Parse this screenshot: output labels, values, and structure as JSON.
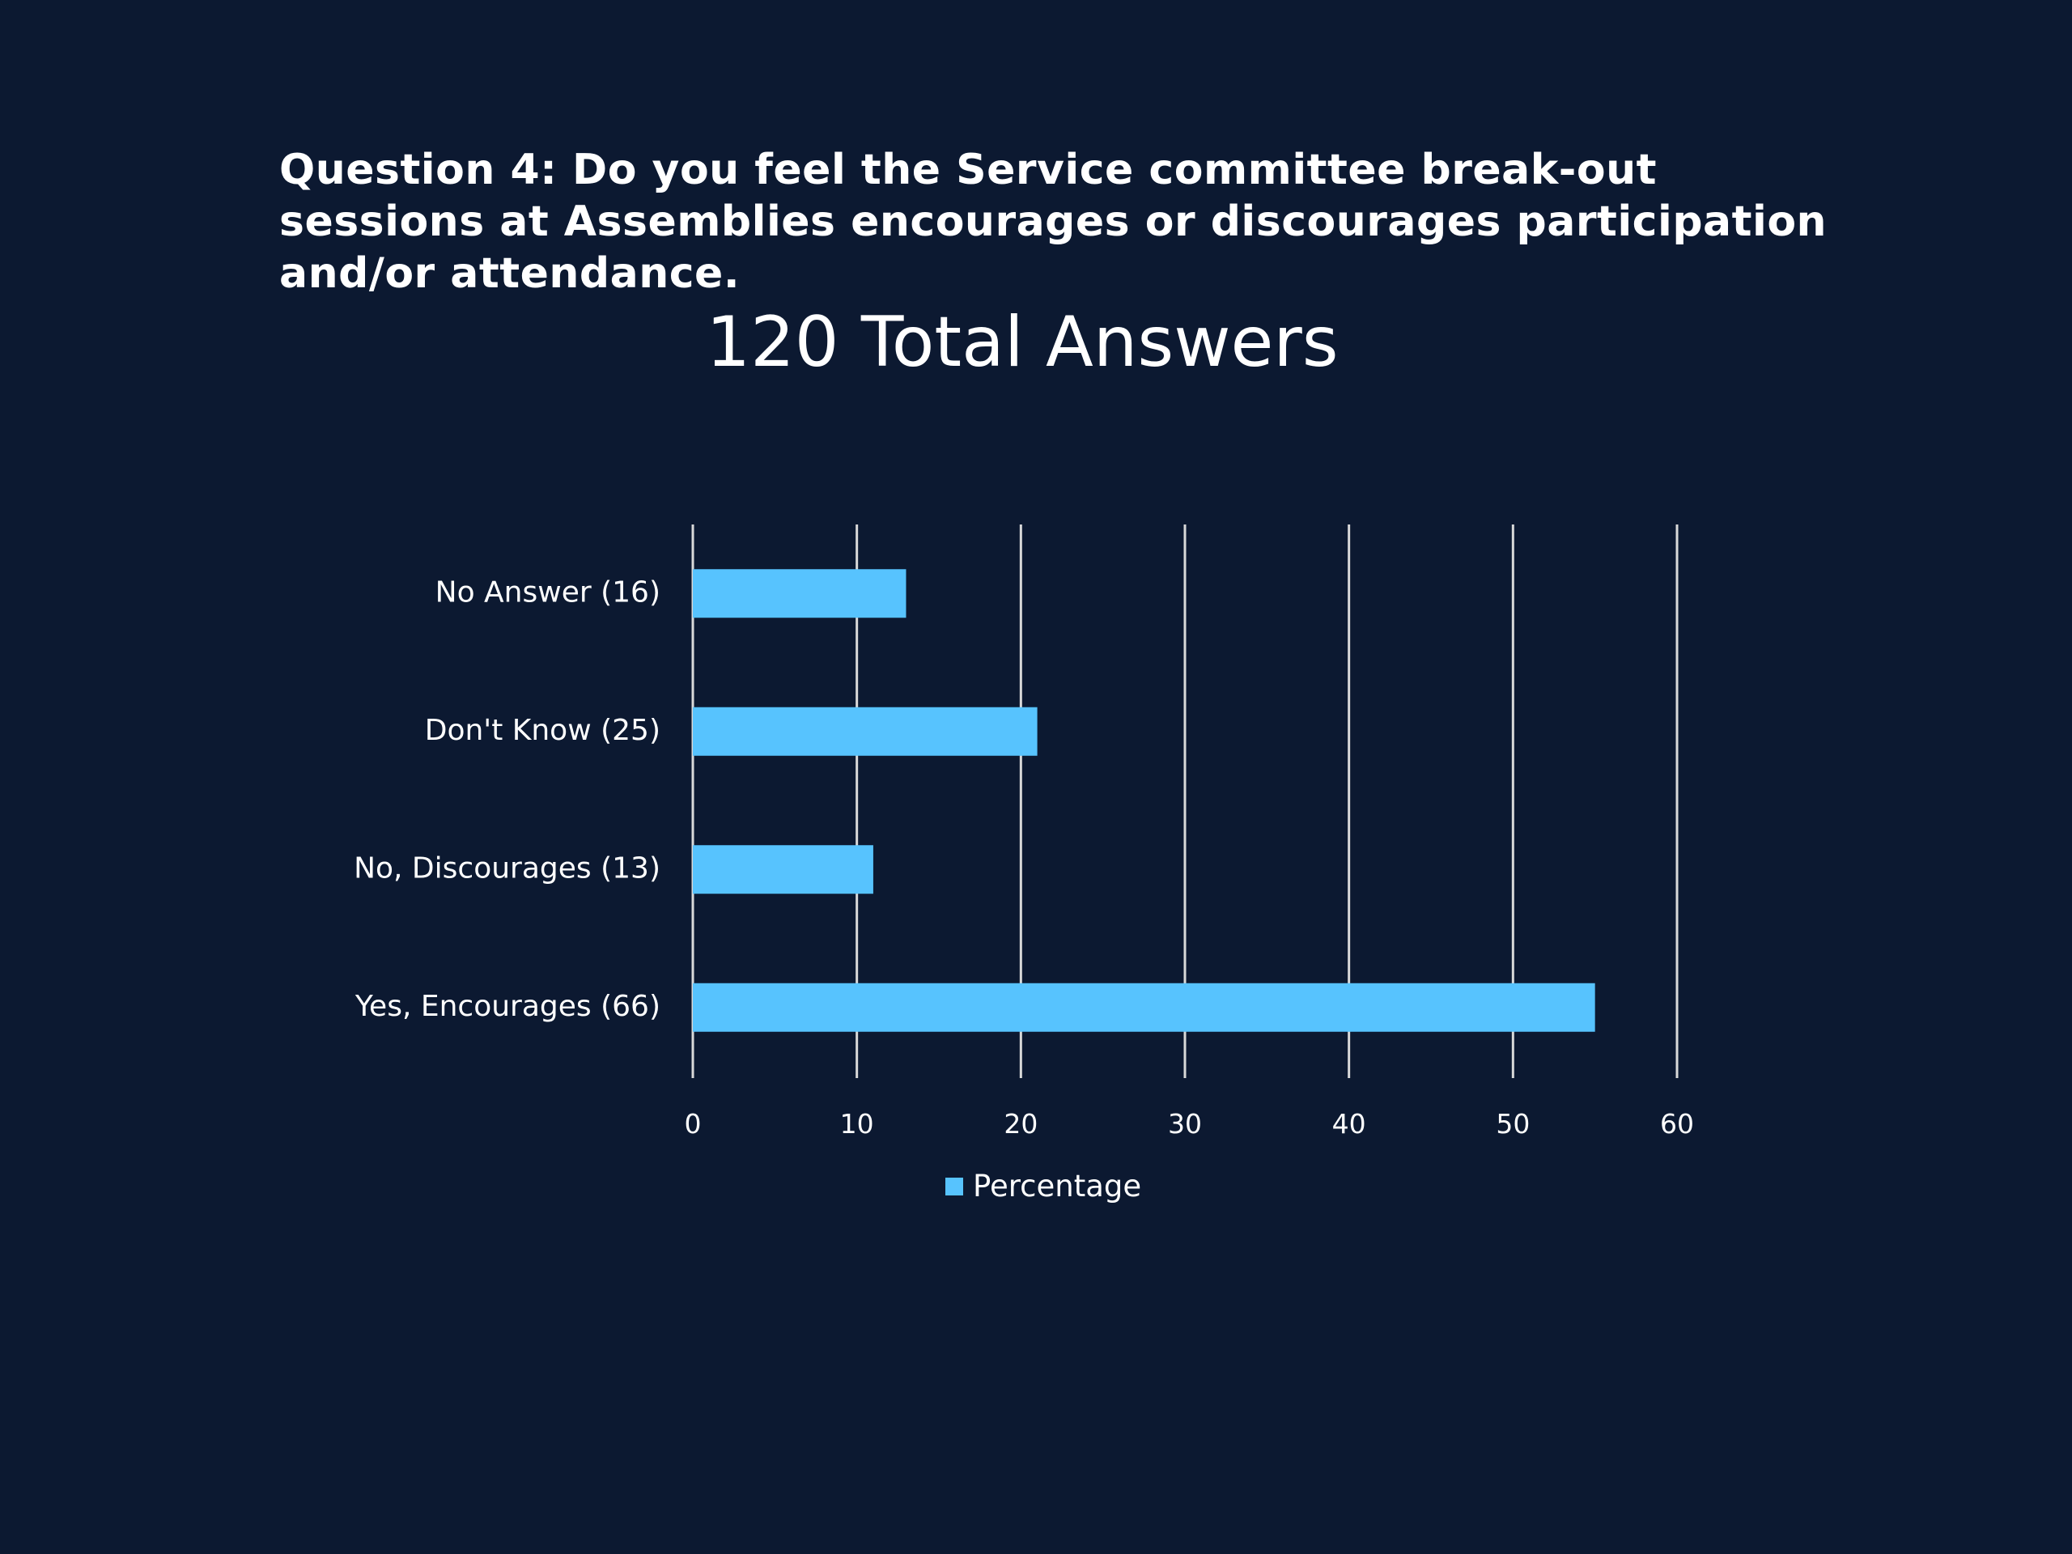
{
  "question": "Question 4: Do you feel the Service committee break-out sessions at Assemblies encourages or discourages participation and/or attendance.",
  "chart_data": {
    "type": "bar",
    "orientation": "horizontal",
    "title": "120 Total Answers",
    "categories": [
      "No Answer (16)",
      "Don't Know (25)",
      "No, Discourages (13)",
      "Yes, Encourages (66)"
    ],
    "series": [
      {
        "name": "Percentage",
        "values": [
          13,
          21,
          11,
          55
        ],
        "color": "#57c3fe"
      }
    ],
    "xlim": [
      0,
      60
    ],
    "xticks": [
      "0",
      "10",
      "20",
      "30",
      "40",
      "50",
      "60"
    ],
    "grid": true,
    "legend": "bottom"
  },
  "colors": {
    "background": "#0c1931",
    "bar": "#57c3fe",
    "gridline": "#d9d9d9",
    "text": "#ffffff"
  }
}
